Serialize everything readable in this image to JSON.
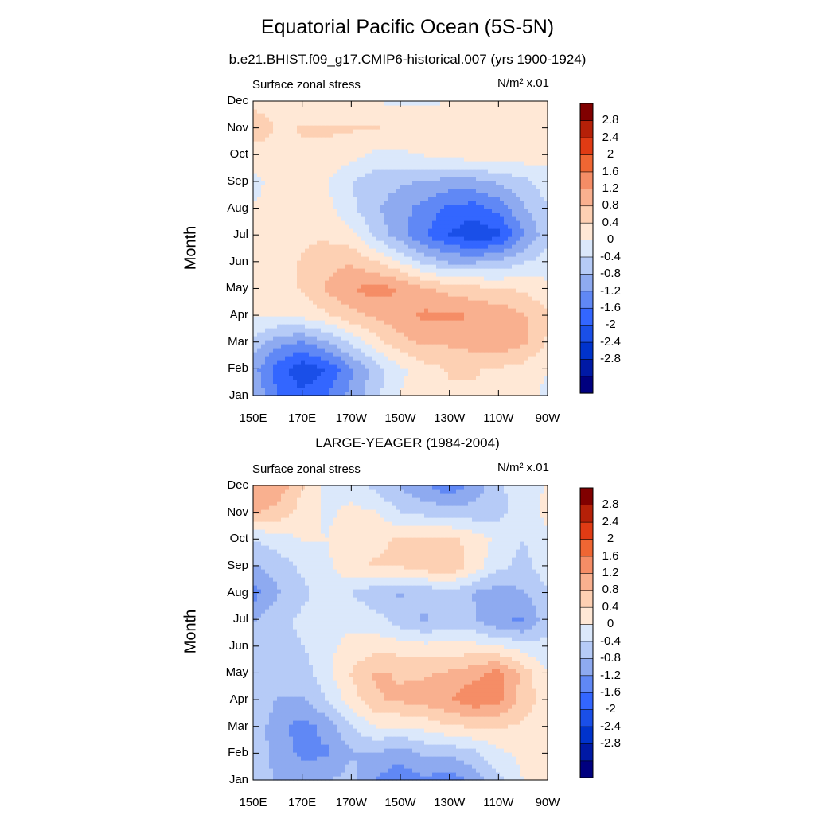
{
  "title": "Equatorial Pacific Ocean (5S-5N)",
  "subtitle": "b.e21.BHIST.f09_g17.CMIP6-historical.007 (yrs 1900-1924)",
  "colormap": [
    "#00007f",
    "#0019a5",
    "#0033cc",
    "#1a4fe8",
    "#3366ff",
    "#6088f5",
    "#8eaaf0",
    "#b6cbf7",
    "#dbe8fb",
    "#ffe8d6",
    "#fdd0b3",
    "#f9b08f",
    "#f58d66",
    "#ef6633",
    "#e03b14",
    "#b52008",
    "#800000"
  ],
  "colorbar_labels": [
    "2.8",
    "2.4",
    "2",
    "1.6",
    "1.2",
    "0.8",
    "0.4",
    "0",
    "-0.4",
    "-0.8",
    "-1.2",
    "-1.6",
    "-2",
    "-2.4",
    "-2.8"
  ],
  "chart_data": [
    {
      "type": "heatmap",
      "panel_title": "",
      "left_label": "Surface zonal stress",
      "units_label": "N/m² x.01",
      "ylabel": "Month",
      "x_ticks": [
        "150E",
        "170E",
        "170W",
        "150W",
        "130W",
        "110W",
        "90W"
      ],
      "y_ticks": [
        "Jan",
        "Feb",
        "Mar",
        "Apr",
        "May",
        "Jun",
        "Jul",
        "Aug",
        "Sep",
        "Oct",
        "Nov",
        "Dec"
      ],
      "x": [
        150,
        160,
        170,
        180,
        190,
        200,
        210,
        220,
        230,
        240,
        250,
        260,
        270
      ],
      "y": [
        "Jan",
        "Feb",
        "Mar",
        "Apr",
        "May",
        "Jun",
        "Jul",
        "Aug",
        "Sep",
        "Oct",
        "Nov",
        "Dec"
      ],
      "z": [
        [
          -0.6,
          -1.3,
          -1.6,
          -1.3,
          -0.8,
          -0.3,
          0.2,
          0.4,
          0.5,
          0.5,
          0.4,
          0.3,
          0.1
        ],
        [
          -0.8,
          -1.5,
          -2.0,
          -1.7,
          -1.0,
          -0.4,
          0.1,
          0.4,
          0.6,
          0.6,
          0.5,
          0.4,
          0.2
        ],
        [
          -0.3,
          -0.8,
          -1.0,
          -0.6,
          -0.1,
          0.4,
          0.8,
          1.0,
          1.0,
          1.1,
          1.2,
          1.0,
          0.5
        ],
        [
          0.2,
          0.2,
          0.3,
          0.5,
          0.8,
          1.0,
          1.2,
          1.4,
          1.4,
          1.3,
          1.2,
          1.0,
          0.6
        ],
        [
          0.3,
          0.4,
          0.6,
          1.0,
          1.3,
          1.5,
          1.3,
          1.0,
          0.8,
          0.7,
          0.6,
          0.5,
          0.3
        ],
        [
          0.3,
          0.4,
          0.6,
          0.8,
          0.9,
          0.6,
          0.2,
          -0.3,
          -0.6,
          -0.6,
          -0.5,
          -0.2,
          0.0
        ],
        [
          0.2,
          0.3,
          0.5,
          0.5,
          0.3,
          -0.3,
          -0.8,
          -1.3,
          -1.7,
          -2.0,
          -1.8,
          -1.0,
          -0.3
        ],
        [
          0.2,
          0.3,
          0.5,
          0.3,
          -0.1,
          -0.5,
          -0.8,
          -1.1,
          -1.4,
          -1.5,
          -1.2,
          -0.6,
          -0.2
        ],
        [
          0.1,
          0.3,
          0.4,
          0.2,
          -0.2,
          -0.4,
          -0.5,
          -0.6,
          -0.7,
          -0.7,
          -0.5,
          -0.3,
          0.0
        ],
        [
          0.3,
          0.4,
          0.5,
          0.5,
          0.3,
          0.1,
          0.1,
          0.2,
          0.3,
          0.4,
          0.4,
          0.4,
          0.3
        ],
        [
          0.9,
          0.5,
          0.6,
          0.6,
          0.6,
          0.6,
          0.5,
          0.5,
          0.5,
          0.5,
          0.5,
          0.5,
          0.5
        ],
        [
          0.4,
          0.4,
          0.4,
          0.4,
          0.3,
          0.2,
          0.1,
          0.1,
          0.2,
          0.3,
          0.4,
          0.4,
          0.4
        ]
      ],
      "zlim": [
        -3.2,
        3.2
      ]
    },
    {
      "type": "heatmap",
      "panel_title": "LARGE-YEAGER (1984-2004)",
      "left_label": "Surface zonal stress",
      "units_label": "N/m² x.01",
      "ylabel": "Month",
      "x_ticks": [
        "150E",
        "170E",
        "170W",
        "150W",
        "130W",
        "110W",
        "90W"
      ],
      "y_ticks": [
        "Jan",
        "Feb",
        "Mar",
        "Apr",
        "May",
        "Jun",
        "Jul",
        "Aug",
        "Sep",
        "Oct",
        "Nov",
        "Dec"
      ],
      "x": [
        150,
        160,
        170,
        180,
        190,
        200,
        210,
        220,
        230,
        240,
        250,
        260,
        270
      ],
      "y": [
        "Jan",
        "Feb",
        "Mar",
        "Apr",
        "May",
        "Jun",
        "Jul",
        "Aug",
        "Sep",
        "Oct",
        "Nov",
        "Dec"
      ],
      "z": [
        [
          -0.2,
          -0.6,
          -0.8,
          -0.6,
          -0.4,
          -1.0,
          -1.2,
          -1.0,
          -1.2,
          -0.8,
          -0.3,
          0.2,
          0.3
        ],
        [
          -0.2,
          -0.8,
          -1.0,
          -1.0,
          -0.6,
          -0.6,
          -0.8,
          -0.5,
          -0.5,
          -0.3,
          0.1,
          0.3,
          0.3
        ],
        [
          -0.3,
          -0.8,
          -1.1,
          -0.8,
          -0.2,
          0.2,
          0.2,
          0.3,
          0.5,
          0.6,
          0.6,
          0.5,
          0.3
        ],
        [
          -0.2,
          -0.6,
          -0.6,
          -0.2,
          0.4,
          0.9,
          1.0,
          1.1,
          1.3,
          1.6,
          1.4,
          0.8,
          0.3
        ],
        [
          -0.2,
          -0.4,
          -0.4,
          0.1,
          0.6,
          1.0,
          0.9,
          0.9,
          1.0,
          1.2,
          1.5,
          0.8,
          0.2
        ],
        [
          -0.3,
          -0.4,
          -0.2,
          0.1,
          0.3,
          0.4,
          0.4,
          0.3,
          0.3,
          0.3,
          0.2,
          0.0,
          -0.1
        ],
        [
          -0.6,
          -0.3,
          -0.1,
          0.1,
          0.1,
          0.0,
          -0.4,
          -0.6,
          -0.4,
          -0.5,
          -0.9,
          -1.0,
          -0.3
        ],
        [
          -1.1,
          -0.6,
          -0.3,
          0.0,
          -0.2,
          -0.5,
          -0.6,
          -0.5,
          -0.3,
          -0.6,
          -0.8,
          -0.6,
          -0.2
        ],
        [
          -0.6,
          -0.4,
          -0.1,
          0.1,
          0.5,
          0.6,
          0.6,
          0.8,
          0.9,
          0.4,
          -0.1,
          -0.3,
          0.0
        ],
        [
          -0.2,
          0.0,
          0.2,
          0.2,
          0.4,
          0.5,
          0.6,
          0.6,
          0.7,
          0.4,
          0.1,
          -0.2,
          0.1
        ],
        [
          1.0,
          0.8,
          0.4,
          0.1,
          0.3,
          0.2,
          -0.2,
          -0.3,
          -0.4,
          -0.4,
          -0.3,
          0.0,
          0.3
        ],
        [
          1.3,
          1.2,
          0.6,
          0.1,
          0.0,
          -0.3,
          -0.6,
          -0.9,
          -1.2,
          -0.8,
          -0.3,
          0.1,
          0.2
        ]
      ],
      "zlim": [
        -3.2,
        3.2
      ]
    }
  ]
}
